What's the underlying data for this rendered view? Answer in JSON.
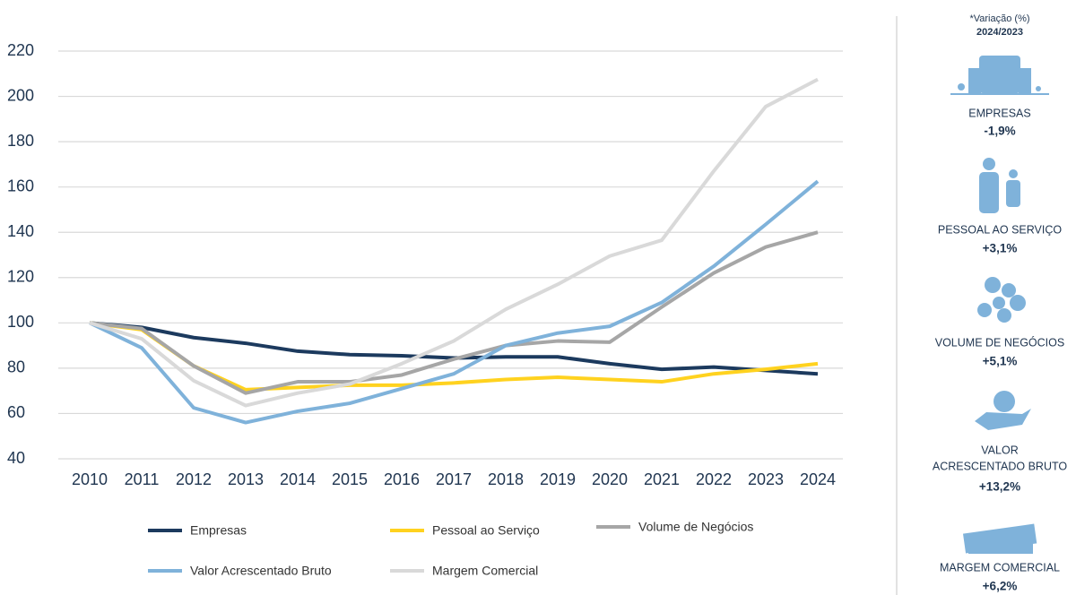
{
  "chart_data": {
    "type": "line",
    "categories": [
      "2010",
      "2011",
      "2012",
      "2013",
      "2014",
      "2015",
      "2016",
      "2017",
      "2018",
      "2019",
      "2020",
      "2021",
      "2022",
      "2023",
      "2024"
    ],
    "series": [
      {
        "name": "Empresas",
        "color": "#1c3a5e",
        "values": [
          100,
          98,
          93.5,
          91,
          87.5,
          86,
          85.5,
          84.5,
          85,
          85,
          82,
          79.5,
          80.5,
          79,
          77.5
        ]
      },
      {
        "name": "Pessoal ao Serviço",
        "color": "#ffd21f",
        "values": [
          100,
          97,
          81,
          70.5,
          71.5,
          72.5,
          72.5,
          73.5,
          75,
          76,
          75,
          74,
          77.5,
          79.5,
          82
        ]
      },
      {
        "name": "Volume de Negócios",
        "color": "#a6a6a6",
        "values": [
          100,
          97.5,
          81,
          69,
          74,
          74,
          77,
          84,
          90,
          92,
          91.5,
          107,
          122,
          133.5,
          140
        ]
      },
      {
        "name": "Valor Acrescentado Bruto",
        "color": "#7fb2da",
        "values": [
          100,
          89,
          62.5,
          56,
          61,
          64.5,
          71,
          77.5,
          90,
          95.5,
          98.5,
          109,
          125,
          143.5,
          162.5
        ]
      },
      {
        "name": "Margem Comercial",
        "color": "#d9d9d9",
        "values": [
          100,
          93,
          74.5,
          63.5,
          69,
          73,
          82,
          92,
          106,
          117,
          129.5,
          136.5,
          167,
          195.5,
          207.5
        ]
      }
    ],
    "ylim": [
      40,
      220
    ],
    "yticks": [
      40,
      60,
      80,
      100,
      120,
      140,
      160,
      180,
      200,
      220
    ],
    "grid": true
  },
  "panel": {
    "title": "*Variação (%)",
    "subtitle": "2024/2023",
    "items": [
      {
        "label": [
          "EMPRESAS"
        ],
        "value": "-1,9%"
      },
      {
        "label": [
          "PESSOAL AO SERVIÇO"
        ],
        "value": "+3,1%"
      },
      {
        "label": [
          "VOLUME DE NEGÓCIOS"
        ],
        "value": "+5,1%"
      },
      {
        "label": [
          "VALOR",
          "ACRESCENTADO BRUTO"
        ],
        "value": "+13,2%"
      },
      {
        "label": [
          "MARGEM COMERCIAL"
        ],
        "value": "+6,2%"
      }
    ]
  }
}
